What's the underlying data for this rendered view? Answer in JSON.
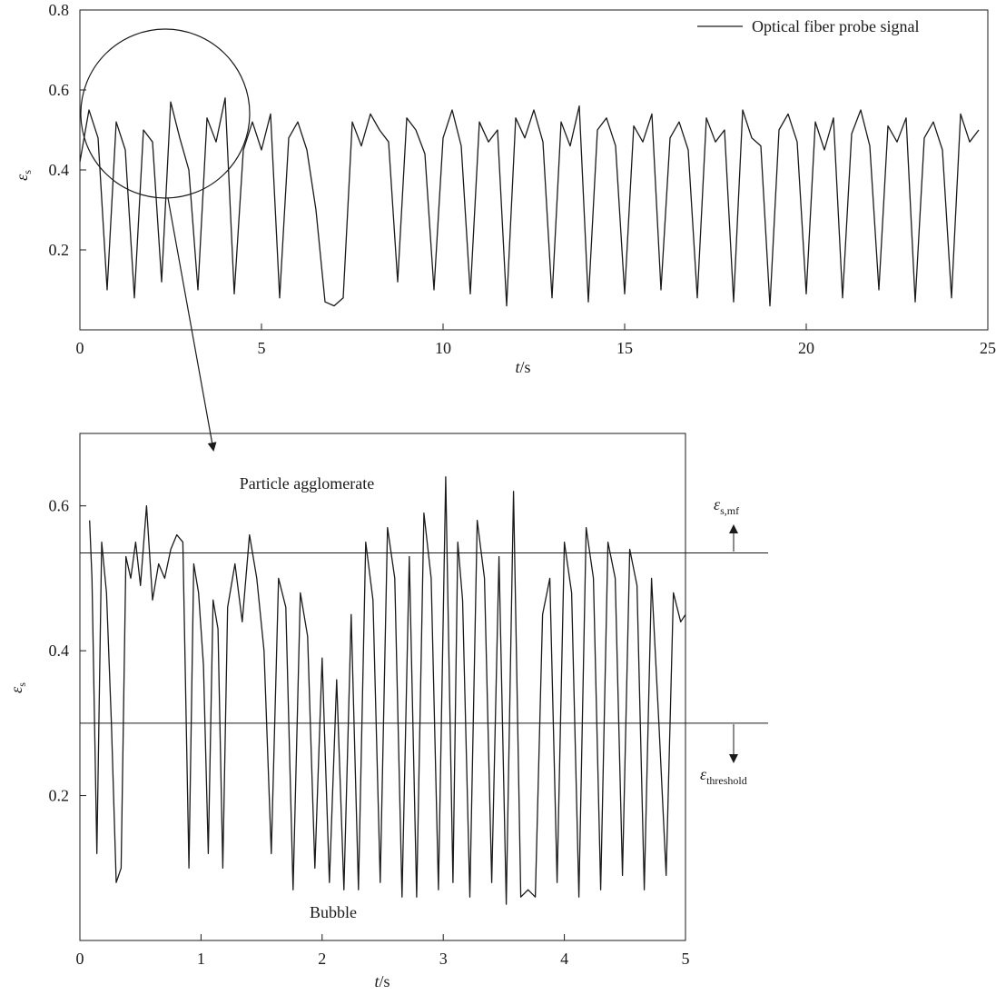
{
  "colors": {
    "line": "#1a1a1a",
    "background": "#ffffff"
  },
  "chart_data": [
    {
      "type": "line",
      "legend": {
        "entries": [
          "Optical fiber probe signal"
        ],
        "position": "top-right",
        "frame": false
      },
      "xlabel": {
        "var": "t",
        "unit": "/s"
      },
      "ylabel": {
        "var": "ε",
        "sub": "s"
      },
      "xlim": [
        0,
        25
      ],
      "ylim": [
        0.0,
        0.8
      ],
      "xticks": [
        0,
        5,
        10,
        15,
        20,
        25
      ],
      "xtick_labels": [
        "0",
        "5",
        "10",
        "15",
        "20",
        "25"
      ],
      "yticks": [
        0.2,
        0.4,
        0.6,
        0.8
      ],
      "ytick_labels": [
        "0.2",
        "0.4",
        "0.6",
        "0.8"
      ],
      "grid": false,
      "series": [
        {
          "name": "Optical fiber probe signal",
          "sample_step": 0.25,
          "t_start": 0,
          "values": [
            0.42,
            0.55,
            0.48,
            0.1,
            0.52,
            0.45,
            0.08,
            0.5,
            0.47,
            0.12,
            0.57,
            0.48,
            0.4,
            0.1,
            0.53,
            0.47,
            0.58,
            0.09,
            0.45,
            0.52,
            0.45,
            0.54,
            0.08,
            0.48,
            0.52,
            0.45,
            0.3,
            0.07,
            0.06,
            0.08,
            0.52,
            0.46,
            0.54,
            0.5,
            0.47,
            0.12,
            0.53,
            0.5,
            0.44,
            0.1,
            0.48,
            0.55,
            0.46,
            0.09,
            0.52,
            0.47,
            0.5,
            0.06,
            0.53,
            0.48,
            0.55,
            0.47,
            0.08,
            0.52,
            0.46,
            0.56,
            0.07,
            0.5,
            0.53,
            0.46,
            0.09,
            0.51,
            0.47,
            0.54,
            0.1,
            0.48,
            0.52,
            0.45,
            0.08,
            0.53,
            0.47,
            0.5,
            0.07,
            0.55,
            0.48,
            0.46,
            0.06,
            0.5,
            0.54,
            0.47,
            0.09,
            0.52,
            0.45,
            0.53,
            0.08,
            0.49,
            0.55,
            0.46,
            0.1,
            0.51,
            0.47,
            0.53,
            0.07,
            0.48,
            0.52,
            0.45,
            0.08,
            0.54,
            0.47,
            0.5
          ]
        }
      ]
    },
    {
      "type": "line",
      "xlabel": {
        "var": "t",
        "unit": "/s"
      },
      "ylabel": {
        "var": "ε",
        "sub": "s"
      },
      "xlim": [
        0,
        5
      ],
      "ylim": [
        0.0,
        0.7
      ],
      "xticks": [
        0,
        1,
        2,
        3,
        4,
        5
      ],
      "xtick_labels": [
        "0",
        "1",
        "2",
        "3",
        "4",
        "5"
      ],
      "yticks": [
        0.2,
        0.4,
        0.6
      ],
      "ytick_labels": [
        "0.2",
        "0.4",
        "0.6"
      ],
      "grid": false,
      "reference_lines": [
        {
          "value": 0.535,
          "label_var": "ε",
          "label_sub": "s,mf",
          "arrow": "up"
        },
        {
          "value": 0.3,
          "label_var": "ε",
          "label_sub": "threshold",
          "arrow": "down"
        }
      ],
      "annotations": [
        "Particle agglomerate",
        "Bubble"
      ],
      "series": [
        {
          "name": "",
          "x": [
            0.08,
            0.1,
            0.14,
            0.18,
            0.22,
            0.26,
            0.3,
            0.34,
            0.38,
            0.42,
            0.46,
            0.5,
            0.55,
            0.6,
            0.65,
            0.7,
            0.75,
            0.8,
            0.85,
            0.9,
            0.94,
            0.98,
            1.02,
            1.06,
            1.1,
            1.14,
            1.18,
            1.22,
            1.28,
            1.34,
            1.4,
            1.46,
            1.52,
            1.58,
            1.64,
            1.7,
            1.76,
            1.82,
            1.88,
            1.94,
            2.0,
            2.06,
            2.12,
            2.18,
            2.24,
            2.3,
            2.36,
            2.42,
            2.48,
            2.54,
            2.6,
            2.66,
            2.72,
            2.78,
            2.84,
            2.9,
            2.96,
            3.02,
            3.08,
            3.12,
            3.16,
            3.22,
            3.28,
            3.34,
            3.4,
            3.46,
            3.52,
            3.58,
            3.64,
            3.7,
            3.76,
            3.82,
            3.88,
            3.94,
            4.0,
            4.06,
            4.12,
            4.18,
            4.24,
            4.3,
            4.36,
            4.42,
            4.48,
            4.54,
            4.6,
            4.66,
            4.72,
            4.78,
            4.84,
            4.9,
            4.96,
            5.0
          ],
          "y": [
            0.58,
            0.5,
            0.12,
            0.55,
            0.48,
            0.3,
            0.08,
            0.1,
            0.53,
            0.5,
            0.55,
            0.49,
            0.6,
            0.47,
            0.52,
            0.5,
            0.54,
            0.56,
            0.55,
            0.1,
            0.52,
            0.48,
            0.38,
            0.12,
            0.47,
            0.43,
            0.1,
            0.46,
            0.52,
            0.44,
            0.56,
            0.5,
            0.4,
            0.12,
            0.5,
            0.46,
            0.07,
            0.48,
            0.42,
            0.1,
            0.39,
            0.08,
            0.36,
            0.07,
            0.45,
            0.07,
            0.55,
            0.47,
            0.08,
            0.57,
            0.5,
            0.06,
            0.53,
            0.06,
            0.59,
            0.5,
            0.07,
            0.64,
            0.08,
            0.55,
            0.47,
            0.06,
            0.58,
            0.5,
            0.08,
            0.53,
            0.05,
            0.62,
            0.06,
            0.07,
            0.06,
            0.45,
            0.5,
            0.08,
            0.55,
            0.48,
            0.06,
            0.57,
            0.5,
            0.07,
            0.55,
            0.5,
            0.09,
            0.54,
            0.49,
            0.07,
            0.5,
            0.3,
            0.09,
            0.48,
            0.44,
            0.45
          ]
        }
      ]
    }
  ]
}
